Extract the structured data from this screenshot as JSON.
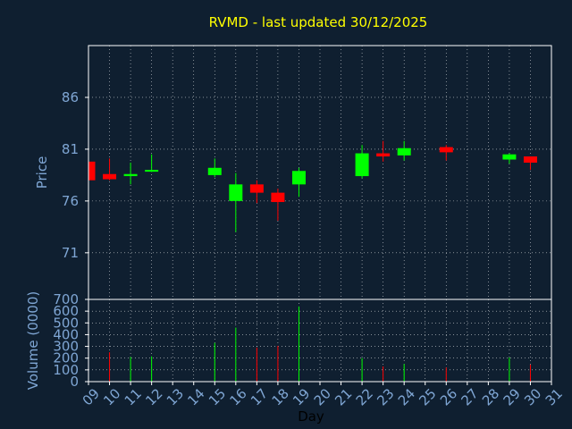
{
  "chart_data": [
    {
      "type": "candlestick",
      "title": "RVMD - last updated 30/12/2025",
      "ylabel": "Price",
      "ylim": [
        66.5,
        91
      ],
      "y_ticks": [
        "71",
        "76",
        "81",
        "86"
      ],
      "grid": true,
      "colors": {
        "up": "#00ff00",
        "down": "#ff0000",
        "background": "#0f1f30",
        "frame": "#ffffff",
        "title": "#ffff00",
        "tick": "#7fa6d4"
      },
      "candles": [
        {
          "day": "09",
          "open": 79.8,
          "high": 79.8,
          "low": 78.0,
          "close": 78.0
        },
        {
          "day": "10",
          "open": 78.6,
          "high": 80.1,
          "low": 78.0,
          "close": 78.1
        },
        {
          "day": "11",
          "open": 78.4,
          "high": 79.7,
          "low": 77.6,
          "close": 78.6
        },
        {
          "day": "12",
          "open": 78.9,
          "high": 80.5,
          "low": 78.8,
          "close": 79.0
        },
        {
          "day": "15",
          "open": 78.5,
          "high": 80.1,
          "low": 78.3,
          "close": 79.2
        },
        {
          "day": "16",
          "open": 76.0,
          "high": 78.7,
          "low": 73.0,
          "close": 77.6
        },
        {
          "day": "17",
          "open": 77.6,
          "high": 78.0,
          "low": 75.8,
          "close": 76.8
        },
        {
          "day": "18",
          "open": 76.8,
          "high": 77.2,
          "low": 74.1,
          "close": 75.9
        },
        {
          "day": "19",
          "open": 77.6,
          "high": 79.2,
          "low": 76.4,
          "close": 78.9
        },
        {
          "day": "22",
          "open": 78.4,
          "high": 81.4,
          "low": 78.2,
          "close": 80.6
        },
        {
          "day": "23",
          "open": 80.6,
          "high": 81.8,
          "low": 79.8,
          "close": 80.3
        },
        {
          "day": "24",
          "open": 80.4,
          "high": 81.8,
          "low": 79.9,
          "close": 81.1
        },
        {
          "day": "26",
          "open": 81.2,
          "high": 81.4,
          "low": 79.9,
          "close": 80.7
        },
        {
          "day": "29",
          "open": 80.0,
          "high": 80.6,
          "low": 79.6,
          "close": 80.5
        },
        {
          "day": "30",
          "open": 80.3,
          "high": 80.3,
          "low": 79.0,
          "close": 79.7
        }
      ]
    },
    {
      "type": "bar",
      "xlabel": "Day",
      "ylabel": "Volume (0000)",
      "ylim": [
        0,
        700
      ],
      "y_ticks": [
        "0",
        "100",
        "200",
        "300",
        "400",
        "500",
        "600",
        "700"
      ],
      "grid": true,
      "x_ticks": [
        "09",
        "10",
        "11",
        "12",
        "13",
        "14",
        "15",
        "16",
        "17",
        "18",
        "19",
        "20",
        "21",
        "22",
        "23",
        "24",
        "25",
        "26",
        "27",
        "28",
        "29",
        "30",
        "31"
      ],
      "bars": [
        {
          "day": "10",
          "value": 250,
          "color": "#ff0000"
        },
        {
          "day": "11",
          "value": 210,
          "color": "#00ff00"
        },
        {
          "day": "12",
          "value": 215,
          "color": "#00ff00"
        },
        {
          "day": "15",
          "value": 330,
          "color": "#00ff00"
        },
        {
          "day": "16",
          "value": 460,
          "color": "#00ff00"
        },
        {
          "day": "17",
          "value": 290,
          "color": "#ff0000"
        },
        {
          "day": "18",
          "value": 305,
          "color": "#ff0000"
        },
        {
          "day": "19",
          "value": 640,
          "color": "#00ff00"
        },
        {
          "day": "22",
          "value": 200,
          "color": "#00ff00"
        },
        {
          "day": "23",
          "value": 130,
          "color": "#ff0000"
        },
        {
          "day": "24",
          "value": 150,
          "color": "#00ff00"
        },
        {
          "day": "26",
          "value": 120,
          "color": "#ff0000"
        },
        {
          "day": "29",
          "value": 205,
          "color": "#00ff00"
        },
        {
          "day": "30",
          "value": 145,
          "color": "#ff0000"
        }
      ]
    }
  ]
}
